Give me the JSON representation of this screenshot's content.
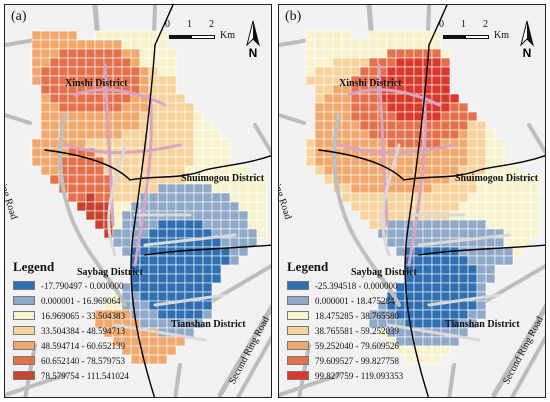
{
  "panels": [
    {
      "label": "(a)",
      "legend_title": "Legend",
      "classes": [
        {
          "range": "-17.790497 - 0.000000",
          "color": "#2f6fb2"
        },
        {
          "range": "0.000001 - 16.969064",
          "color": "#8fa8c8"
        },
        {
          "range": "16.969065 - 33.504383",
          "color": "#f6f2cc"
        },
        {
          "range": "33.504384 - 48.594713",
          "color": "#f7d29a"
        },
        {
          "range": "48.594714 - 60.652139",
          "color": "#f1a86c"
        },
        {
          "range": "60.652140 - 78.579753",
          "color": "#e3714c"
        },
        {
          "range": "78.579754 - 111.541024",
          "color": "#c8432f"
        }
      ]
    },
    {
      "label": "(b)",
      "legend_title": "Legend",
      "classes": [
        {
          "range": "-25.394518 - 0.000000",
          "color": "#2f6fb2"
        },
        {
          "range": "0.000001 - 18.475284",
          "color": "#8fa8c8"
        },
        {
          "range": "18.475285 - 38.765580",
          "color": "#f6f2cc"
        },
        {
          "range": "38.765581 - 59.252039",
          "color": "#f7d29a"
        },
        {
          "range": "59.252040 - 79.609526",
          "color": "#f1a86c"
        },
        {
          "range": "79.609527 - 99.827758",
          "color": "#e3714c"
        },
        {
          "range": "99.827759 - 119.093353",
          "color": "#d9392b"
        }
      ]
    }
  ],
  "districts": {
    "xinshi": "Xinshi District",
    "shuimogou": "Shuimogou District",
    "saybag": "Saybag District",
    "tianshan": "Tianshan District"
  },
  "roads": {
    "outer_ring": "Outer-ring Road",
    "second_ring": "Second Ring Road"
  },
  "scale": {
    "ticks": [
      "0",
      "1",
      "2"
    ],
    "unit": "Km"
  },
  "north": "N",
  "colors": {
    "background": "#f1f1f1",
    "roads_main": "#000000",
    "roads_secondary": "#bcbcbc",
    "roads_inner": "#d8a4c4"
  }
}
